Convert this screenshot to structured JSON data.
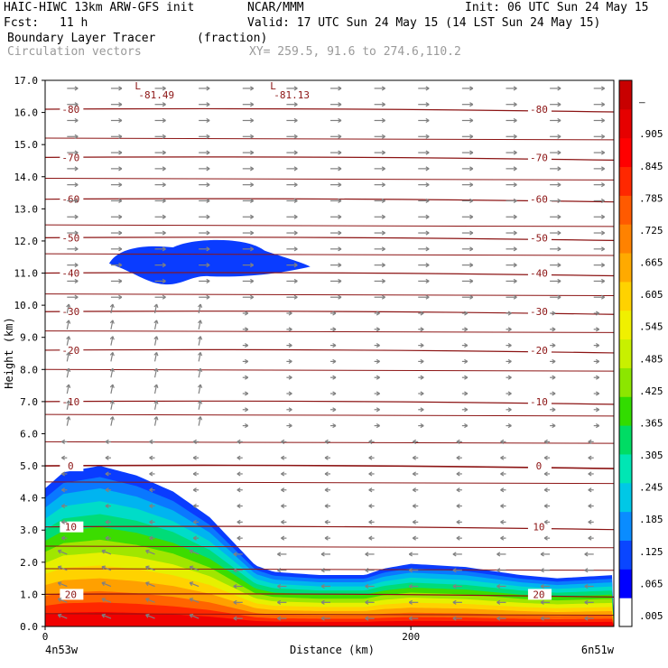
{
  "header": {
    "model": "HAIC-HIWC 13km ARW-GFS init",
    "center": "NCAR/MMM",
    "init": "Init: 06 UTC Sun 24 May 15",
    "fcst_label": "Fcst:",
    "fcst_value": "11 h",
    "valid": "Valid: 17 UTC Sun 24 May 15 (14 LST Sun 24 May 15)",
    "field_name": "Boundary Layer Tracer",
    "field_units": "(fraction)",
    "vector_name": "Circulation vectors",
    "xy_text": "XY= 259.5, 91.6 to 274.6,110.2"
  },
  "chart_data": {
    "type": "cross-section",
    "ylabel": "Height (km)",
    "xlabel": "Distance (km)",
    "ylim": [
      0,
      17
    ],
    "xlim": [
      0,
      311
    ],
    "y_ticks": [
      "0.0",
      "1.0",
      "2.0",
      "3.0",
      "4.0",
      "5.0",
      "6.0",
      "7.0",
      "8.0",
      "9.0",
      "10.0",
      "11.0",
      "12.0",
      "13.0",
      "14.0",
      "15.0",
      "16.0",
      "17.0"
    ],
    "x_ticks": [
      {
        "value": 0,
        "label": "0"
      },
      {
        "value": 200,
        "label": "200"
      }
    ],
    "x_endpoints": {
      "left": "4n53w",
      "right": "6n51w"
    },
    "colorbar_labels": [
      ".005",
      ".065",
      ".125",
      ".185",
      ".245",
      ".305",
      ".365",
      ".425",
      ".485",
      ".545",
      ".605",
      ".665",
      ".725",
      ".785",
      ".845",
      ".905",
      "–"
    ],
    "colorbar_colors": [
      "#ffffff",
      "#0000ff",
      "#0a46ff",
      "#0a8cff",
      "#00c8e6",
      "#00e6b4",
      "#00dc64",
      "#32dc00",
      "#8ce600",
      "#c8f000",
      "#f0f000",
      "#ffd200",
      "#ffaa00",
      "#ff8200",
      "#ff5a00",
      "#ff2800",
      "#ff0000",
      "#e60000",
      "#c80000"
    ],
    "temperature_contours": [
      {
        "label": "-80",
        "height": 16.1
      },
      {
        "label": "-70",
        "height": 14.6
      },
      {
        "label": "-60",
        "height": 13.3
      },
      {
        "label": "-50",
        "height": 12.1
      },
      {
        "label": "-40",
        "height": 11.0
      },
      {
        "label": "-30",
        "height": 9.8
      },
      {
        "label": "-20",
        "height": 8.6
      },
      {
        "label": "-10",
        "height": 7.0
      },
      {
        "label": "0",
        "height": 5.0
      },
      {
        "label": "10",
        "height": 3.1
      },
      {
        "label": "20",
        "height": 1.0
      }
    ],
    "lows": [
      {
        "label": "L",
        "value": "-81.49",
        "distance": 53
      },
      {
        "label": "L",
        "value": "-81.13",
        "distance": 127
      }
    ],
    "tracer_top_km": [
      {
        "x": 0,
        "y": 4.3
      },
      {
        "x": 10,
        "y": 4.8
      },
      {
        "x": 30,
        "y": 5.0
      },
      {
        "x": 50,
        "y": 4.7
      },
      {
        "x": 70,
        "y": 4.2
      },
      {
        "x": 90,
        "y": 3.4
      },
      {
        "x": 105,
        "y": 2.5
      },
      {
        "x": 115,
        "y": 1.9
      },
      {
        "x": 125,
        "y": 1.7
      },
      {
        "x": 150,
        "y": 1.6
      },
      {
        "x": 175,
        "y": 1.6
      },
      {
        "x": 185,
        "y": 1.8
      },
      {
        "x": 200,
        "y": 1.95
      },
      {
        "x": 230,
        "y": 1.85
      },
      {
        "x": 260,
        "y": 1.6
      },
      {
        "x": 280,
        "y": 1.5
      },
      {
        "x": 311,
        "y": 1.6
      }
    ],
    "upper_patch": {
      "x_range": [
        35,
        145
      ],
      "z_range": [
        10.6,
        12.1
      ]
    }
  }
}
